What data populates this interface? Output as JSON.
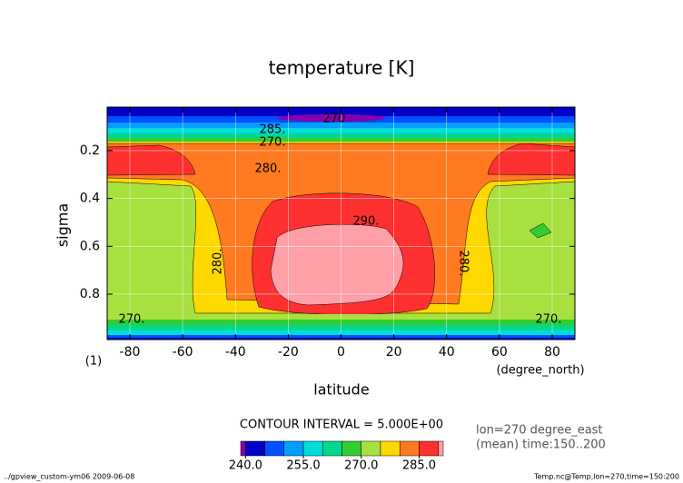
{
  "chart_data": {
    "type": "contour",
    "title": "temperature [K]",
    "x_label": "latitude",
    "x_unit": "(degree_north)",
    "y_label": "sigma",
    "panel_label": "(1)",
    "xlim": [
      -88.6,
      88.6
    ],
    "xticks": [
      -80,
      -60,
      -40,
      -20,
      0,
      20,
      40,
      60,
      80
    ],
    "ylim": [
      0.018,
      0.99
    ],
    "yticks": [
      0.2,
      0.4,
      0.6,
      0.8
    ],
    "y_inverted": true,
    "grid": true,
    "contour_labels": [
      {
        "value": 270,
        "label": "270"
      },
      {
        "value": 285,
        "label": "285."
      },
      {
        "value": 270,
        "label": "270."
      },
      {
        "value": 280,
        "label": "280."
      },
      {
        "value": 290,
        "label": "290."
      },
      {
        "value": 280,
        "label": "280."
      },
      {
        "value": 280,
        "label": "280."
      },
      {
        "value": 270,
        "label": "270."
      },
      {
        "value": 270,
        "label": "270."
      }
    ],
    "contour_interval_text": "CONTOUR INTERVAL = 5.000E+00",
    "info_lines": [
      "lon=270 degree_east",
      "(mean) time:150..200"
    ],
    "colorbar": {
      "levels": [
        240,
        245,
        250,
        255,
        260,
        265,
        270,
        275,
        280,
        285,
        290
      ],
      "colors": [
        "#8a00a8",
        "#0000c8",
        "#0050ff",
        "#00a0ff",
        "#00dcdc",
        "#00d890",
        "#33cc33",
        "#a8e040",
        "#ffd800",
        "#ff7a20",
        "#ff3030",
        "#ffa0a8"
      ],
      "ticks": [
        {
          "value": 240,
          "label": "240.0"
        },
        {
          "value": 255,
          "label": "255.0"
        },
        {
          "value": 270,
          "label": "270.0"
        },
        {
          "value": 285,
          "label": "285.0"
        }
      ]
    },
    "footer_left": "../gpview_custom-ym06  2009-06-08",
    "footer_right": "Temp.nc@Temp,lon=270,time=150:200"
  }
}
